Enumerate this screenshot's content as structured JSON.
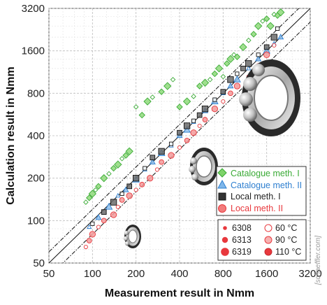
{
  "chart_data": {
    "type": "scatter",
    "xlabel": "Measurement result in Nmm",
    "ylabel": "Calculation result in Nmm",
    "x_scale": "log",
    "y_scale": "log",
    "xlim": [
      50,
      3200
    ],
    "ylim": [
      50,
      3200
    ],
    "x_ticks": [
      "50",
      "100",
      "200",
      "400",
      "800",
      "1600",
      "3200"
    ],
    "y_ticks": [
      "50",
      "100",
      "200",
      "400",
      "800",
      "1600",
      "3200"
    ],
    "grid": true,
    "reference_lines": [
      "y = x",
      "y = 1.2x",
      "y = 0.8x"
    ],
    "legend_methods": [
      {
        "label": "Catalogue meth. I",
        "marker": "diamond",
        "color": "#3aaa35"
      },
      {
        "label": "Catalogue meth. II",
        "marker": "triangle",
        "color": "#2e7fd0"
      },
      {
        "label": "Local meth. I",
        "marker": "square",
        "color": "#222222"
      },
      {
        "label": "Local meth. II",
        "marker": "circle",
        "color": "#e8383d"
      }
    ],
    "legend_sizes": [
      {
        "label": "6308",
        "size": "small"
      },
      {
        "label": "6313",
        "size": "medium"
      },
      {
        "label": "6319",
        "size": "large"
      }
    ],
    "legend_temps": [
      {
        "label": "60 °C",
        "fill": "none"
      },
      {
        "label": "90 °C",
        "fill": "light"
      },
      {
        "label": "110 °C",
        "fill": "full"
      }
    ],
    "series": [
      {
        "name": "Catalogue meth. I",
        "x": [
          90,
          95,
          100,
          105,
          110,
          120,
          130,
          140,
          150,
          160,
          170,
          180,
          200,
          220,
          240,
          260,
          300,
          330,
          360,
          400,
          450,
          500,
          550,
          600,
          650,
          700,
          750,
          800,
          850,
          900,
          950,
          1000,
          1100,
          1200,
          1300,
          1400,
          1500,
          1600,
          1700,
          1800,
          1900,
          2000
        ],
        "y": [
          135,
          145,
          155,
          165,
          175,
          200,
          215,
          235,
          250,
          275,
          290,
          310,
          640,
          560,
          700,
          750,
          820,
          900,
          1000,
          640,
          700,
          760,
          900,
          950,
          1000,
          1100,
          1200,
          1050,
          1300,
          1400,
          1500,
          1450,
          1700,
          1900,
          2100,
          2400,
          2600,
          2700,
          2400,
          2900,
          2850,
          3000
        ]
      },
      {
        "name": "Catalogue meth. II",
        "x": [
          95,
          110,
          130,
          150,
          170,
          200,
          230,
          260,
          300,
          350,
          400,
          450,
          500,
          600,
          700,
          800,
          900,
          1000,
          1200,
          1400,
          1600,
          1800,
          2000
        ],
        "y": [
          90,
          105,
          125,
          150,
          165,
          195,
          230,
          260,
          300,
          340,
          400,
          440,
          500,
          600,
          700,
          800,
          900,
          1000,
          1200,
          1400,
          1600,
          1800,
          2000
        ]
      },
      {
        "name": "Local meth. I",
        "x": [
          100,
          120,
          140,
          160,
          180,
          200,
          230,
          260,
          300,
          350,
          400,
          450,
          500,
          550,
          600,
          700,
          800,
          900,
          1000,
          1100,
          1200,
          1400,
          1600,
          1800,
          1900
        ],
        "y": [
          95,
          115,
          135,
          155,
          175,
          200,
          235,
          280,
          310,
          350,
          420,
          470,
          510,
          560,
          620,
          720,
          820,
          1000,
          1100,
          1200,
          1300,
          1500,
          1700,
          2000,
          2300
        ]
      },
      {
        "name": "Local meth. II",
        "x": [
          90,
          95,
          100,
          110,
          120,
          140,
          150,
          160,
          180,
          200,
          220,
          250,
          280,
          300,
          350,
          400,
          450,
          500,
          550,
          600,
          700,
          800,
          900,
          1000,
          1200,
          1400,
          1600,
          1800
        ],
        "y": [
          65,
          72,
          80,
          90,
          100,
          110,
          125,
          140,
          150,
          165,
          180,
          200,
          230,
          260,
          290,
          330,
          370,
          420,
          470,
          520,
          620,
          700,
          800,
          900,
          1050,
          1250,
          1500,
          1750
        ]
      }
    ]
  },
  "watermark": "[schaeffler.com]"
}
